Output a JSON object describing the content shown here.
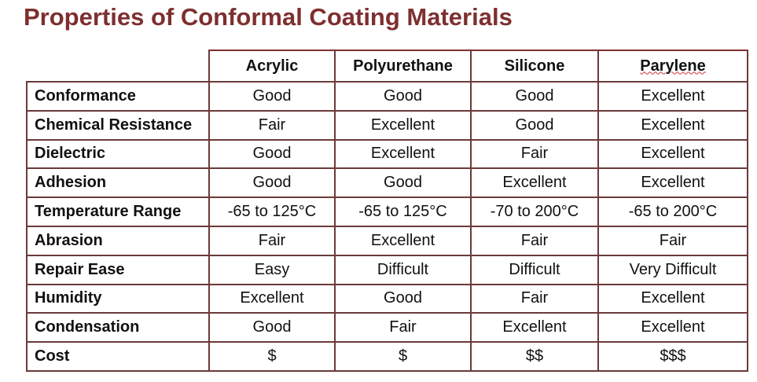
{
  "header": {
    "title": "Properties of Conformal Coating Materials"
  },
  "table": {
    "columns": [
      "Acrylic",
      "Polyurethane",
      "Silicone",
      "Parylene"
    ],
    "rows": [
      [
        "Conformance",
        "Good",
        "Good",
        "Good",
        "Excellent"
      ],
      [
        "Chemical Resistance",
        "Fair",
        "Excellent",
        "Good",
        "Excellent"
      ],
      [
        "Dielectric",
        "Good",
        "Excellent",
        "Fair",
        "Excellent"
      ],
      [
        "Adhesion",
        "Good",
        "Good",
        "Excellent",
        "Excellent"
      ],
      [
        "Temperature Range",
        "-65 to 125°C",
        "-65 to 125°C",
        "-70 to 200°C",
        "-65 to 200°C"
      ],
      [
        "Abrasion",
        "Fair",
        "Excellent",
        "Fair",
        "Fair"
      ],
      [
        "Repair Ease",
        "Easy",
        "Difficult",
        "Difficult",
        "Very Difficult"
      ],
      [
        "Humidity",
        "Excellent",
        "Good",
        "Fair",
        "Excellent"
      ],
      [
        "Condensation",
        "Good",
        "Fair",
        "Excellent",
        "Excellent"
      ],
      [
        "Cost",
        "$",
        "$",
        "$$",
        "$$$"
      ]
    ]
  }
}
